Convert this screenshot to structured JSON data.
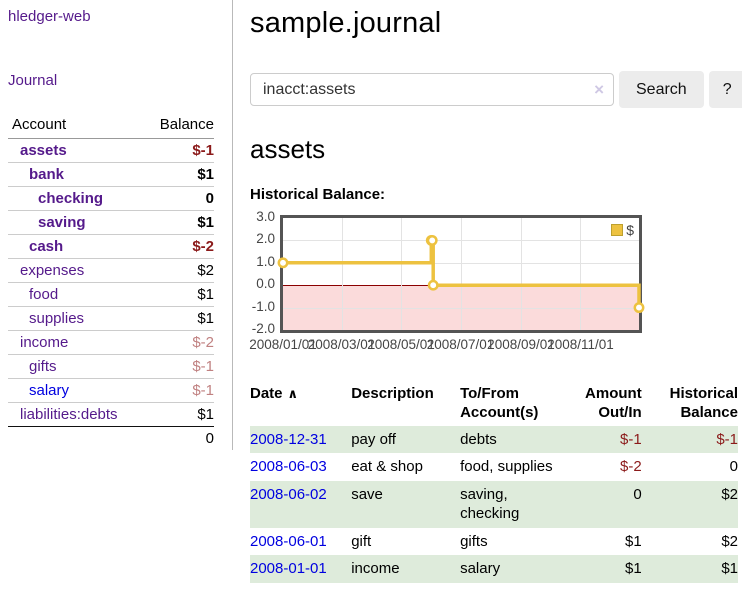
{
  "sidebar": {
    "app_title": "hledger-web",
    "nav": {
      "journal": "Journal"
    },
    "accounts_table": {
      "account_header": "Account",
      "balance_header": "Balance",
      "rows": [
        {
          "name": "assets",
          "indent": 1,
          "bold": true,
          "balance": "$-1",
          "balance_tone": "negative"
        },
        {
          "name": "bank",
          "indent": 2,
          "bold": true,
          "balance": "$1",
          "balance_tone": "positive"
        },
        {
          "name": "checking",
          "indent": 3,
          "bold": true,
          "balance": "0",
          "balance_tone": "positive"
        },
        {
          "name": "saving",
          "indent": 3,
          "bold": true,
          "balance": "$1",
          "balance_tone": "positive"
        },
        {
          "name": "cash",
          "indent": 2,
          "bold": true,
          "balance": "$-2",
          "balance_tone": "negative"
        },
        {
          "name": "expenses",
          "indent": 1,
          "bold": false,
          "balance": "$2",
          "balance_tone": "positive"
        },
        {
          "name": "food",
          "indent": 2,
          "bold": false,
          "balance": "$1",
          "balance_tone": "positive"
        },
        {
          "name": "supplies",
          "indent": 2,
          "bold": false,
          "balance": "$1",
          "balance_tone": "positive"
        },
        {
          "name": "income",
          "indent": 1,
          "bold": false,
          "balance": "$-2",
          "balance_tone": "negative-dim"
        },
        {
          "name": "gifts",
          "indent": 2,
          "bold": false,
          "balance": "$-1",
          "balance_tone": "negative-dim"
        },
        {
          "name": "salary",
          "indent": 2,
          "bold": false,
          "balance": "$-1",
          "balance_tone": "negative-dim",
          "link_style": "unvisited"
        },
        {
          "name": "liabilities:debts",
          "indent": 1,
          "bold": false,
          "balance": "$1",
          "balance_tone": "positive"
        }
      ],
      "total": "0"
    }
  },
  "main": {
    "title": "sample.journal",
    "search": {
      "value": "inacct:assets",
      "clear_icon": "×",
      "search_button": "Search",
      "help_button": "?"
    },
    "account_heading": "assets",
    "section_label": "Historical Balance:"
  },
  "register": {
    "headers": {
      "date": "Date",
      "description": "Description",
      "accounts": "To/From Account(s)",
      "amount": "Amount Out/In",
      "balance": "Historical Balance"
    },
    "sort_indicator": "∧",
    "rows": [
      {
        "date": "2008-12-31",
        "description": "pay off",
        "accounts": "debts",
        "amount": "$-1",
        "amount_tone": "negative",
        "balance": "$-1",
        "balance_tone": "negative"
      },
      {
        "date": "2008-06-03",
        "description": "eat & shop",
        "accounts": "food, supplies",
        "amount": "$-2",
        "amount_tone": "negative",
        "balance": "0",
        "balance_tone": "positive"
      },
      {
        "date": "2008-06-02",
        "description": "save",
        "accounts": "saving, checking",
        "amount": "0",
        "amount_tone": "positive",
        "balance": "$2",
        "balance_tone": "positive"
      },
      {
        "date": "2008-06-01",
        "description": "gift",
        "accounts": "gifts",
        "amount": "$1",
        "amount_tone": "positive",
        "balance": "$2",
        "balance_tone": "positive"
      },
      {
        "date": "2008-01-01",
        "description": "income",
        "accounts": "salary",
        "amount": "$1",
        "amount_tone": "positive",
        "balance": "$1",
        "balance_tone": "positive"
      }
    ]
  },
  "chart_data": {
    "type": "line",
    "title": "Historical Balance:",
    "step": "after",
    "series": [
      {
        "name": "$",
        "color": "#edc240",
        "points": [
          [
            "2008-01-01",
            1
          ],
          [
            "2008-06-01",
            2
          ],
          [
            "2008-06-02",
            2
          ],
          [
            "2008-06-03",
            0
          ],
          [
            "2008-12-31",
            -1
          ]
        ]
      }
    ],
    "x_range": [
      "2008-01-01",
      "2008-12-31"
    ],
    "xtick_dates": [
      "2008-01-01",
      "2008-03-01",
      "2008-05-01",
      "2008-07-01",
      "2008-09-01",
      "2008-11-01"
    ],
    "xtick_labels": [
      "2008/01/01",
      "2008/03/01",
      "2008/05/01",
      "2008/07/01",
      "2008/09/01",
      "2008/11/01"
    ],
    "yticks": [
      3,
      2,
      1,
      0,
      -1,
      -2
    ],
    "ytick_labels": [
      "3.0",
      "2.0",
      "1.0",
      "0.0",
      "-1.0",
      "-2.0"
    ],
    "ylim": [
      -2,
      3
    ],
    "grid": true,
    "legend_position": "top-right",
    "negative_region_color": "#fbdbdb",
    "zero_line_color": "#8b0000"
  },
  "colors": {
    "link_visited": "#551a8b",
    "link_unvisited": "#0000e0",
    "negative": "#8b1a1a",
    "negative_dim": "#c08181",
    "row_highlight_green": "#deebdb",
    "chart_line": "#edc240",
    "chart_border": "#545454",
    "button_bg": "#ececec"
  }
}
